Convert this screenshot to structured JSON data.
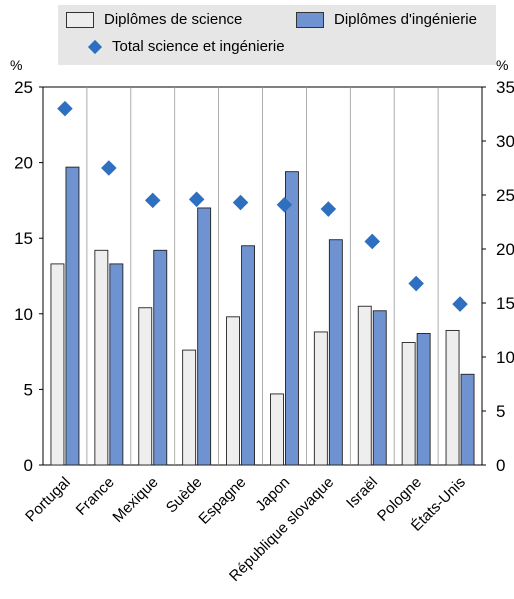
{
  "chart_data": {
    "type": "bar",
    "categories": [
      "Portugal",
      "France",
      "Mexique",
      "Suède",
      "Espagne",
      "Japon",
      "République slovaque",
      "Israël",
      "Pologne",
      "États-Unis"
    ],
    "series": [
      {
        "name": "Diplômes de science",
        "axis": "left",
        "kind": "bar",
        "color": "#eeeeee",
        "values": [
          13.3,
          14.2,
          10.4,
          7.6,
          9.8,
          4.7,
          8.8,
          10.5,
          8.1,
          8.9
        ]
      },
      {
        "name": "Diplômes d'ingénierie",
        "axis": "left",
        "kind": "bar",
        "color": "#6f93d0",
        "values": [
          19.7,
          13.3,
          14.2,
          17.0,
          14.5,
          19.4,
          14.9,
          10.2,
          8.7,
          6.0
        ]
      },
      {
        "name": "Total science et ingénierie",
        "axis": "right",
        "kind": "marker",
        "color": "#2f6fc0",
        "values": [
          33.0,
          27.5,
          24.5,
          24.6,
          24.3,
          24.1,
          23.7,
          20.7,
          16.8,
          14.9
        ]
      }
    ],
    "y_left": {
      "unit": "%",
      "min": 0,
      "max": 25,
      "ticks": [
        "0",
        "5",
        "10",
        "15",
        "20",
        "25"
      ]
    },
    "y_right": {
      "unit": "%",
      "min": 0,
      "max": 35,
      "ticks": [
        "0",
        "5",
        "10",
        "15",
        "20",
        "25",
        "30",
        "35"
      ]
    },
    "grid": "vertical separators between categories",
    "legend_position": "top"
  }
}
